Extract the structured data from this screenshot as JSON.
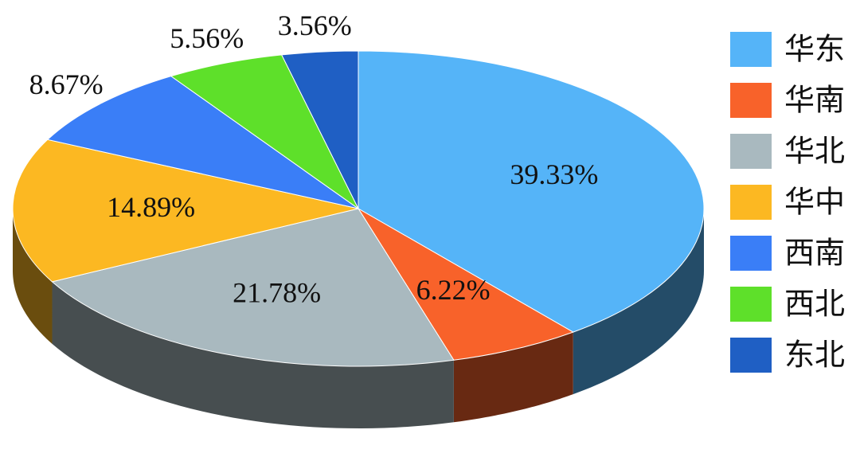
{
  "chart_data": {
    "type": "pie",
    "categories": [
      "华东",
      "华南",
      "华北",
      "华中",
      "西南",
      "西北",
      "东北"
    ],
    "values": [
      39.33,
      6.22,
      21.78,
      14.89,
      8.67,
      5.56,
      3.56
    ],
    "value_labels": [
      "39.33%",
      "6.22%",
      "21.78%",
      "14.89%",
      "8.67%",
      "5.56%",
      "3.56%"
    ],
    "colors": [
      "#55b4f8",
      "#f8622a",
      "#a9b9bf",
      "#fcb822",
      "#3a7ef7",
      "#5ee02a",
      "#1f5fc4"
    ],
    "legend": "right"
  }
}
